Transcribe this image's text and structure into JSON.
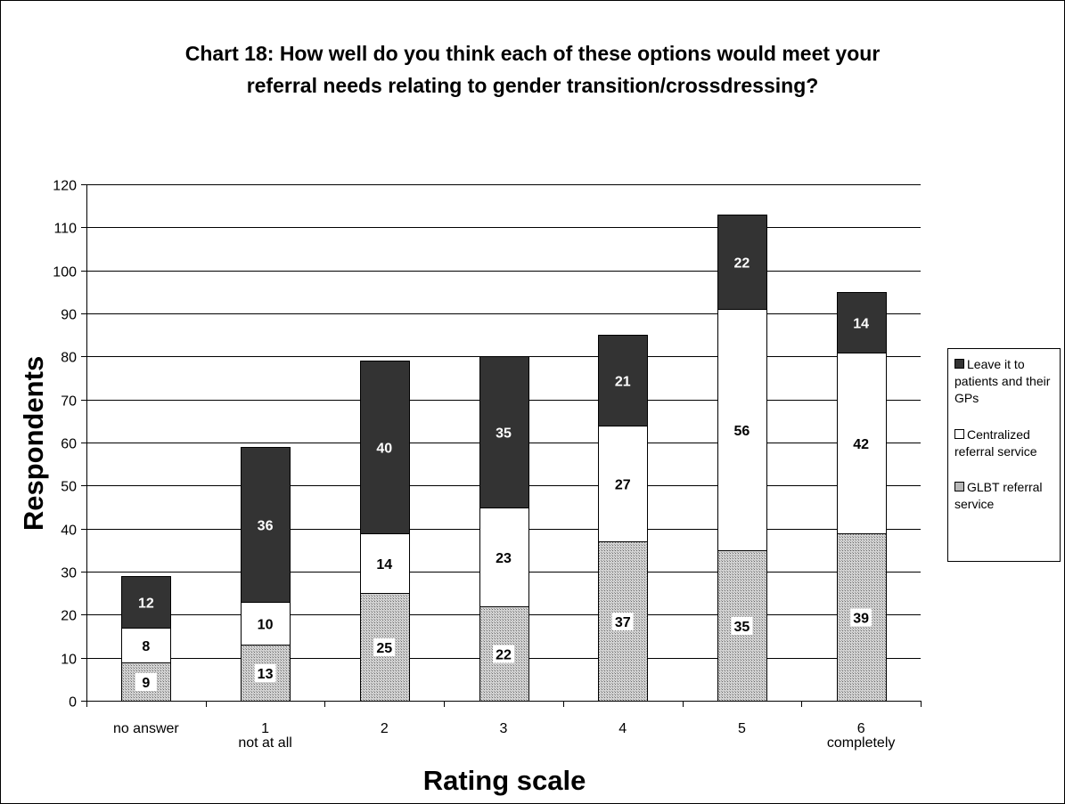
{
  "chart_data": {
    "type": "bar",
    "stacked": true,
    "title_lines": [
      "Chart 18: How well do you think each of these options would meet your",
      "referral needs relating to gender transition/crossdressing?"
    ],
    "xlabel": "Rating scale",
    "ylabel": "Respondents",
    "ylim": [
      0,
      120
    ],
    "yticks": [
      0,
      10,
      20,
      30,
      40,
      50,
      60,
      70,
      80,
      90,
      100,
      110,
      120
    ],
    "categories": [
      "no answer",
      "1",
      "2",
      "3",
      "4",
      "5",
      "6"
    ],
    "category_sublabels": [
      "",
      "not at all",
      "",
      "",
      "",
      "",
      "completely"
    ],
    "series": [
      {
        "name": "GLBT referral service",
        "values": [
          9,
          13,
          25,
          22,
          37,
          35,
          39
        ],
        "color": "#b8b8b8",
        "pattern": "dotted"
      },
      {
        "name": "Centralized referral service",
        "values": [
          8,
          10,
          14,
          23,
          27,
          56,
          42
        ],
        "color": "#ffffff"
      },
      {
        "name": "Leave it to patients and their GPs",
        "values": [
          12,
          36,
          40,
          35,
          21,
          22,
          14
        ],
        "color": "#333333"
      }
    ],
    "legend_position": "right",
    "grid": true
  }
}
